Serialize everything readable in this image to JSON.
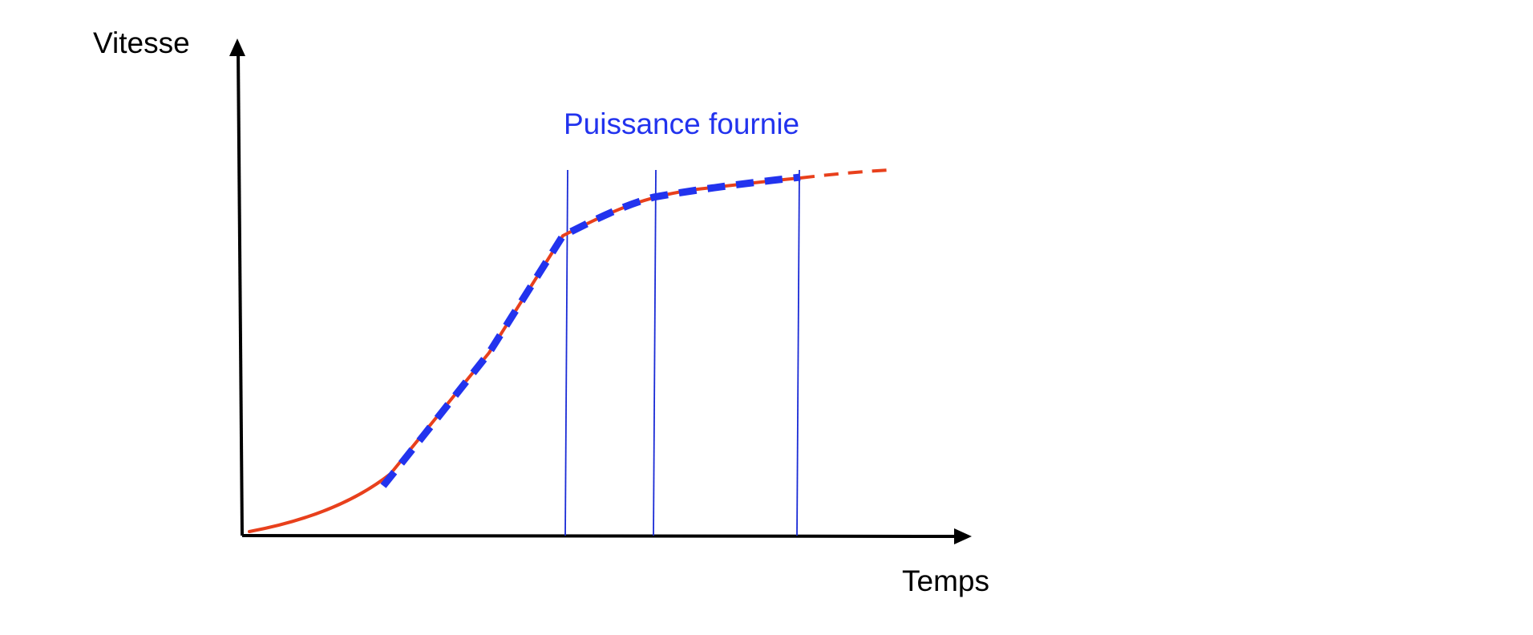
{
  "y_axis": {
    "label": "Vitesse"
  },
  "x_axis": {
    "label": "Temps"
  },
  "annotation": {
    "text": "Puissance fournie"
  },
  "colors": {
    "axis": "#000000",
    "speed_curve": "#e8401c",
    "power_curve": "#2233ee",
    "annotation": "#2233ee",
    "markers": "#1a2bd6"
  }
}
